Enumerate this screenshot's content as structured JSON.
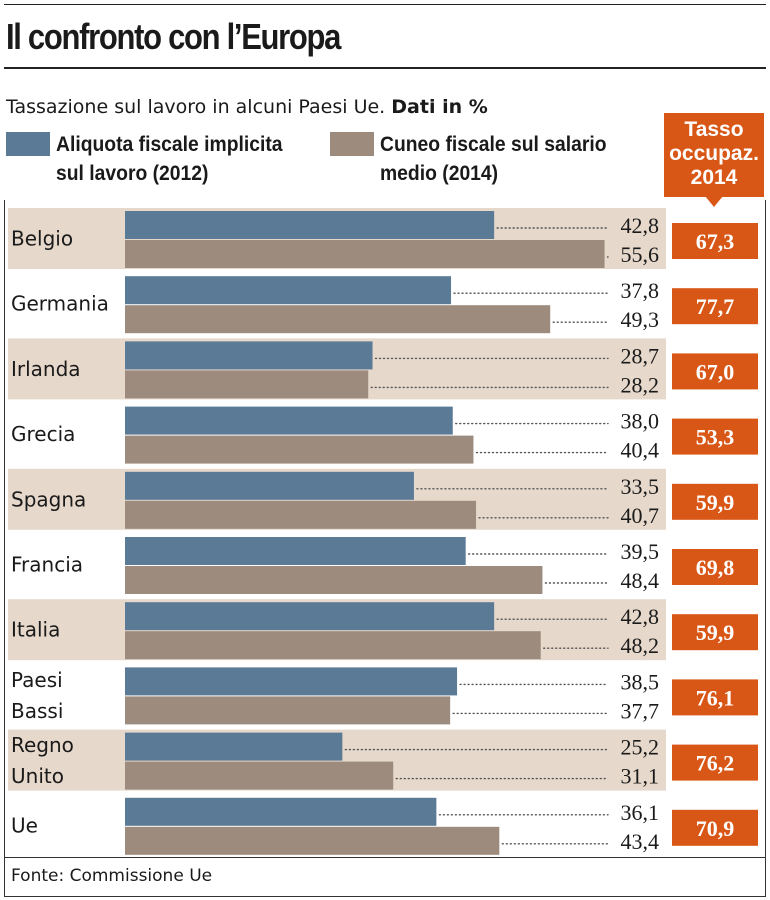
{
  "chart_data": {
    "type": "bar",
    "orientation": "horizontal",
    "title": "Il confronto con l’Europa",
    "subtitle": "Tassazione sul lavoro in alcuni Paesi Ue.",
    "subtitle_bold": "Dati in %",
    "categories": [
      "Belgio",
      "Germania",
      "Irlanda",
      "Grecia",
      "Spagna",
      "Francia",
      "Italia",
      "Paesi Bassi",
      "Regno Unito",
      "Ue"
    ],
    "series": [
      {
        "name": "Aliquota fiscale implicita sul lavoro (2012)",
        "legend_lines": [
          "Aliquota fiscale implicita",
          "sul lavoro (2012)"
        ],
        "color": "#5a7a96",
        "values": [
          42.8,
          37.8,
          28.7,
          38.0,
          33.5,
          39.5,
          42.8,
          38.5,
          25.2,
          36.1
        ],
        "labels": [
          "42,8",
          "37,8",
          "28,7",
          "38,0",
          "33,5",
          "39,5",
          "42,8",
          "38,5",
          "25,2",
          "36,1"
        ]
      },
      {
        "name": "Cuneo fiscale sul salario medio (2014)",
        "legend_lines": [
          "Cuneo fiscale sul salario",
          "medio (2014)"
        ],
        "color": "#9d8b7d",
        "values": [
          55.6,
          49.3,
          28.2,
          40.4,
          40.7,
          48.4,
          48.2,
          37.7,
          31.1,
          43.4
        ],
        "labels": [
          "55,6",
          "49,3",
          "28,2",
          "40,4",
          "40,7",
          "48,4",
          "48,2",
          "37,7",
          "31,1",
          "43,4"
        ]
      }
    ],
    "employment_rate": {
      "header_lines": [
        "Tasso",
        "occupaz.",
        "2014"
      ],
      "color": "#d95716",
      "values": [
        67.3,
        77.7,
        67.0,
        53.3,
        59.9,
        69.8,
        59.9,
        76.1,
        76.2,
        70.9
      ],
      "labels": [
        "67,3",
        "77,7",
        "67,0",
        "53,3",
        "59,9",
        "69,8",
        "59,9",
        "76,1",
        "76,2",
        "70,9"
      ]
    },
    "xlim": [
      0,
      56
    ],
    "row_band_color": "#e6d8cb",
    "source": "Fonte: Commissione Ue"
  }
}
